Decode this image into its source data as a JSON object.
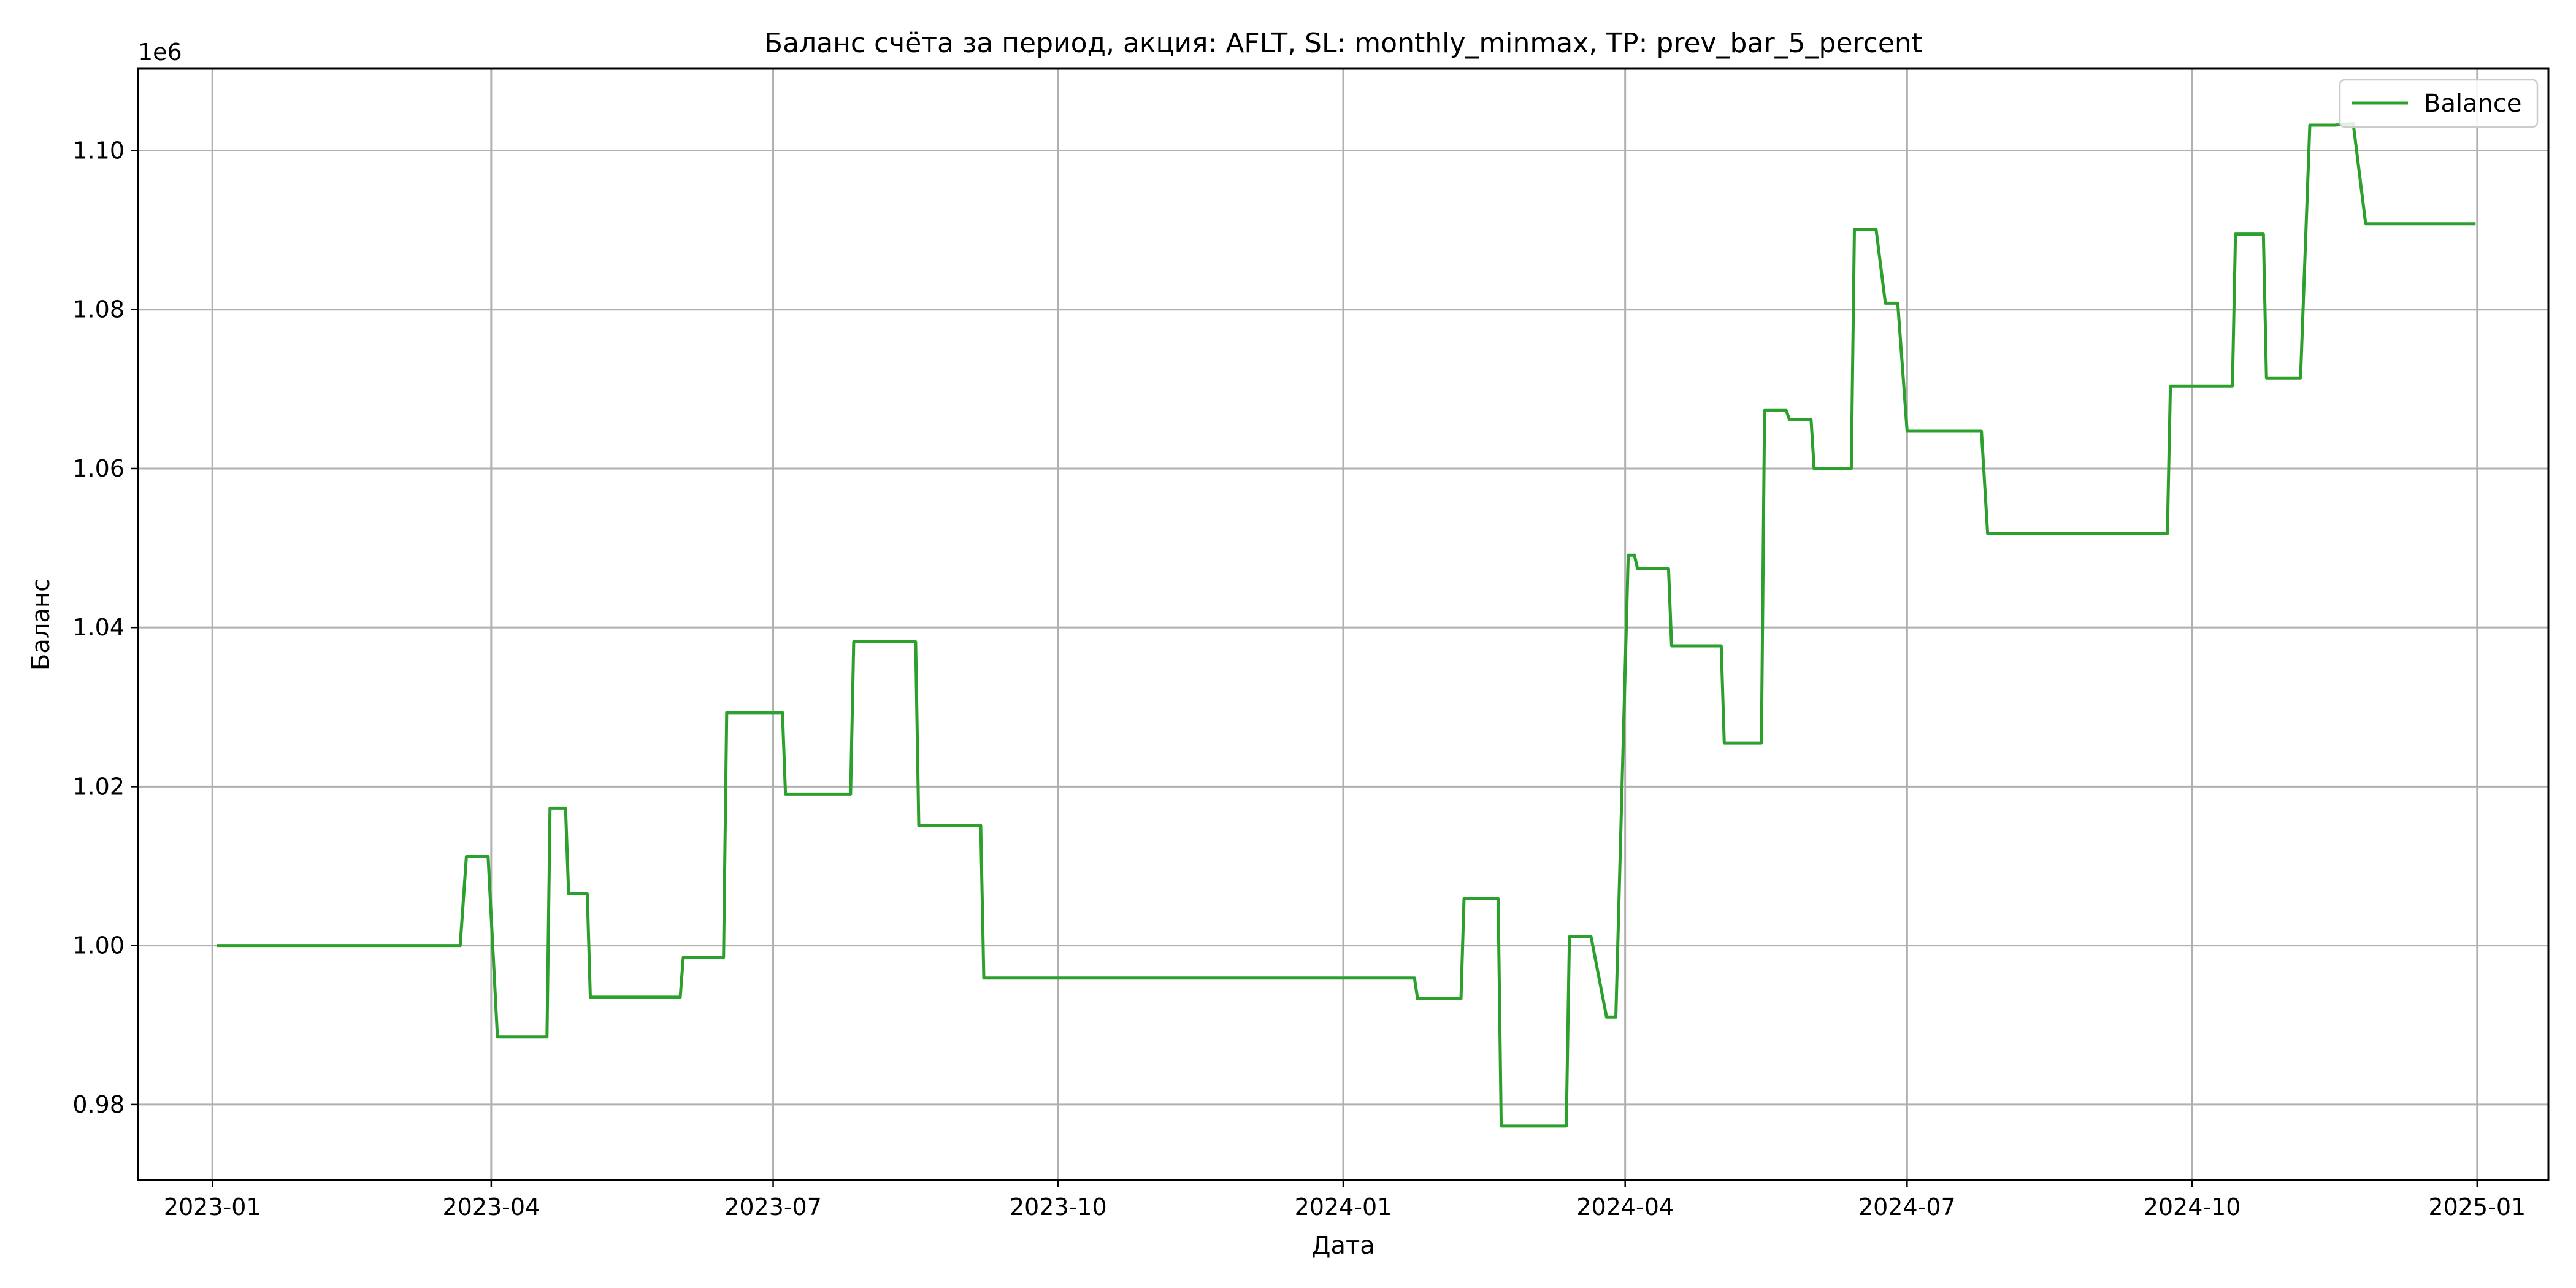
{
  "chart_data": {
    "type": "line",
    "title": "Баланс счёта за период, акция: AFLT, SL: monthly_minmax, TP: prev_bar_5_percent",
    "xlabel": "Дата",
    "ylabel": "Баланс",
    "y_offset_label": "1e6",
    "xlim": [
      "2022-12-08",
      "2025-01-24"
    ],
    "ylim": [
      970500,
      1110300
    ],
    "x_ticks": [
      "2023-01-01",
      "2023-04-01",
      "2023-07-01",
      "2023-10-01",
      "2024-01-01",
      "2024-04-01",
      "2024-07-01",
      "2024-10-01",
      "2025-01-01"
    ],
    "x_tick_labels": [
      "2023-01",
      "2023-04",
      "2023-07",
      "2023-10",
      "2024-01",
      "2024-04",
      "2024-07",
      "2024-10",
      "2025-01"
    ],
    "y_ticks": [
      980000,
      1000000,
      1020000,
      1040000,
      1060000,
      1080000,
      1100000
    ],
    "y_tick_labels": [
      "0.98",
      "1.00",
      "1.02",
      "1.04",
      "1.06",
      "1.08",
      "1.10"
    ],
    "grid": true,
    "legend_position": "top-right",
    "series": [
      {
        "name": "Balance",
        "color": "#2ca02c",
        "x": [
          "2023-01-03",
          "2023-03-22",
          "2023-03-24",
          "2023-03-31",
          "2023-04-03",
          "2023-04-19",
          "2023-04-20",
          "2023-04-25",
          "2023-04-26",
          "2023-05-02",
          "2023-05-03",
          "2023-06-01",
          "2023-06-02",
          "2023-06-15",
          "2023-06-16",
          "2023-07-04",
          "2023-07-05",
          "2023-07-26",
          "2023-07-27",
          "2023-08-16",
          "2023-08-17",
          "2023-09-06",
          "2023-09-07",
          "2024-01-24",
          "2024-01-25",
          "2024-02-08",
          "2024-02-09",
          "2024-02-20",
          "2024-02-21",
          "2024-03-13",
          "2024-03-14",
          "2024-03-21",
          "2024-03-26",
          "2024-03-29",
          "2024-04-02",
          "2024-04-04",
          "2024-04-05",
          "2024-04-15",
          "2024-04-16",
          "2024-05-02",
          "2024-05-03",
          "2024-05-15",
          "2024-05-16",
          "2024-05-23",
          "2024-05-24",
          "2024-05-31",
          "2024-06-01",
          "2024-06-13",
          "2024-06-14",
          "2024-06-21",
          "2024-06-24",
          "2024-06-28",
          "2024-07-01",
          "2024-07-25",
          "2024-07-27",
          "2024-09-23",
          "2024-09-24",
          "2024-10-14",
          "2024-10-15",
          "2024-10-24",
          "2024-10-25",
          "2024-11-05",
          "2024-11-08",
          "2024-11-16",
          "2024-11-22",
          "2024-11-26",
          "2024-12-31"
        ],
        "y": [
          1000000,
          1000000,
          1011200,
          1011200,
          988500,
          988500,
          1017300,
          1017300,
          1006500,
          1006500,
          993500,
          993500,
          998500,
          998500,
          1029300,
          1029300,
          1019000,
          1019000,
          1038200,
          1038200,
          1015100,
          1015100,
          995900,
          995900,
          993300,
          993300,
          1005900,
          1005900,
          977300,
          977300,
          1001100,
          1001100,
          991000,
          991000,
          1049100,
          1049100,
          1047400,
          1047400,
          1037700,
          1037700,
          1025500,
          1025500,
          1067300,
          1067300,
          1066200,
          1066200,
          1060000,
          1060000,
          1090100,
          1090100,
          1080800,
          1080800,
          1064700,
          1064700,
          1051800,
          1051800,
          1070400,
          1070400,
          1089500,
          1089500,
          1071400,
          1071400,
          1103200,
          1103200,
          1103400,
          1090800,
          1090800
        ]
      }
    ]
  }
}
